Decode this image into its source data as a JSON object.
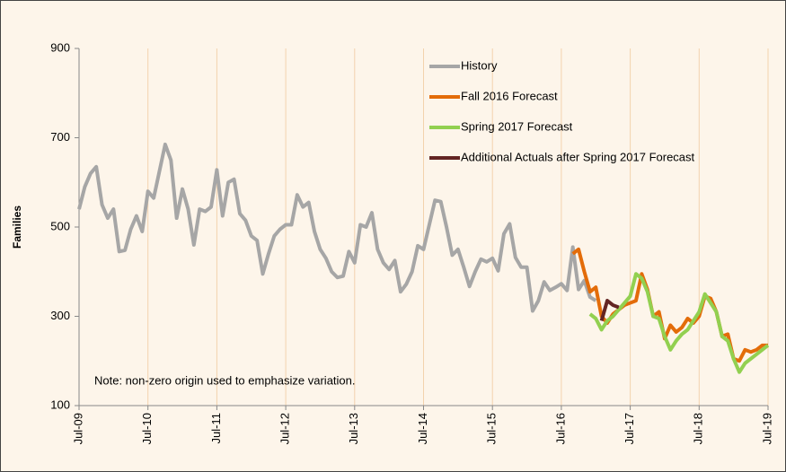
{
  "chart_data": {
    "type": "line",
    "ylabel": "Families",
    "annotation": "Note: non-zero origin used to emphasize variation.",
    "categories": [
      "Jul-09",
      null,
      null,
      null,
      null,
      null,
      null,
      null,
      null,
      null,
      null,
      null,
      "Jul-10",
      null,
      null,
      null,
      null,
      null,
      null,
      null,
      null,
      null,
      null,
      null,
      "Jul-11",
      null,
      null,
      null,
      null,
      null,
      null,
      null,
      null,
      null,
      null,
      null,
      "Jul-12",
      null,
      null,
      null,
      null,
      null,
      null,
      null,
      null,
      null,
      null,
      null,
      "Jul-13",
      null,
      null,
      null,
      null,
      null,
      null,
      null,
      null,
      null,
      null,
      null,
      "Jul-14",
      null,
      null,
      null,
      null,
      null,
      null,
      null,
      null,
      null,
      null,
      null,
      "Jul-15",
      null,
      null,
      null,
      null,
      null,
      null,
      null,
      null,
      null,
      null,
      null,
      "Jul-16",
      null,
      null,
      null,
      null,
      null,
      null,
      null,
      null,
      null,
      null,
      null,
      "Jul-17",
      null,
      null,
      null,
      null,
      null,
      null,
      null,
      null,
      null,
      null,
      null,
      "Jul-18",
      null,
      null,
      null,
      null,
      null,
      null,
      null,
      null,
      null,
      null,
      null,
      "Jul-19"
    ],
    "series": [
      {
        "name": "History",
        "color": "#a6a6a6",
        "values": [
          540,
          590,
          620,
          635,
          550,
          520,
          540,
          445,
          448,
          495,
          525,
          490,
          580,
          565,
          625,
          685,
          650,
          520,
          585,
          540,
          460,
          540,
          535,
          545,
          628,
          525,
          600,
          607,
          530,
          515,
          480,
          470,
          395,
          440,
          480,
          495,
          505,
          505,
          572,
          545,
          555,
          490,
          450,
          430,
          400,
          387,
          390,
          445,
          420,
          505,
          500,
          532,
          450,
          420,
          405,
          425,
          355,
          372,
          400,
          458,
          450,
          505,
          560,
          557,
          500,
          437,
          450,
          410,
          367,
          400,
          428,
          422,
          430,
          402,
          485,
          507,
          432,
          410,
          410,
          312,
          335,
          377,
          358,
          365,
          373,
          358,
          455,
          360,
          380,
          343,
          335,
          null,
          null,
          null,
          null,
          null,
          null,
          null,
          null,
          null,
          null,
          null,
          null,
          null,
          null,
          null,
          null,
          null,
          null,
          null,
          null,
          null,
          null,
          null,
          null,
          null,
          null,
          null,
          null,
          null,
          null
        ]
      },
      {
        "name": "Fall 2016 Forecast",
        "color": "#e36c09",
        "values": [
          null,
          null,
          null,
          null,
          null,
          null,
          null,
          null,
          null,
          null,
          null,
          null,
          null,
          null,
          null,
          null,
          null,
          null,
          null,
          null,
          null,
          null,
          null,
          null,
          null,
          null,
          null,
          null,
          null,
          null,
          null,
          null,
          null,
          null,
          null,
          null,
          null,
          null,
          null,
          null,
          null,
          null,
          null,
          null,
          null,
          null,
          null,
          null,
          null,
          null,
          null,
          null,
          null,
          null,
          null,
          null,
          null,
          null,
          null,
          null,
          null,
          null,
          null,
          null,
          null,
          null,
          null,
          null,
          null,
          null,
          null,
          null,
          null,
          null,
          null,
          null,
          null,
          null,
          null,
          null,
          null,
          null,
          null,
          null,
          null,
          null,
          440,
          450,
          400,
          355,
          365,
          300,
          285,
          305,
          315,
          325,
          330,
          335,
          395,
          360,
          300,
          310,
          250,
          280,
          265,
          275,
          295,
          285,
          300,
          345,
          340,
          310,
          255,
          260,
          205,
          200,
          225,
          220,
          225,
          235,
          235
        ]
      },
      {
        "name": "Spring 2017 Forecast",
        "color": "#92d050",
        "values": [
          null,
          null,
          null,
          null,
          null,
          null,
          null,
          null,
          null,
          null,
          null,
          null,
          null,
          null,
          null,
          null,
          null,
          null,
          null,
          null,
          null,
          null,
          null,
          null,
          null,
          null,
          null,
          null,
          null,
          null,
          null,
          null,
          null,
          null,
          null,
          null,
          null,
          null,
          null,
          null,
          null,
          null,
          null,
          null,
          null,
          null,
          null,
          null,
          null,
          null,
          null,
          null,
          null,
          null,
          null,
          null,
          null,
          null,
          null,
          null,
          null,
          null,
          null,
          null,
          null,
          null,
          null,
          null,
          null,
          null,
          null,
          null,
          null,
          null,
          null,
          null,
          null,
          null,
          null,
          null,
          null,
          null,
          null,
          null,
          null,
          null,
          null,
          null,
          null,
          305,
          295,
          270,
          290,
          300,
          315,
          330,
          345,
          395,
          385,
          355,
          300,
          295,
          255,
          225,
          245,
          260,
          270,
          290,
          310,
          350,
          330,
          310,
          255,
          245,
          205,
          175,
          195,
          205,
          215,
          225,
          235
        ]
      },
      {
        "name": "Additional Actuals after Spring 2017 Forecast",
        "color": "#632523",
        "values": [
          null,
          null,
          null,
          null,
          null,
          null,
          null,
          null,
          null,
          null,
          null,
          null,
          null,
          null,
          null,
          null,
          null,
          null,
          null,
          null,
          null,
          null,
          null,
          null,
          null,
          null,
          null,
          null,
          null,
          null,
          null,
          null,
          null,
          null,
          null,
          null,
          null,
          null,
          null,
          null,
          null,
          null,
          null,
          null,
          null,
          null,
          null,
          null,
          null,
          null,
          null,
          null,
          null,
          null,
          null,
          null,
          null,
          null,
          null,
          null,
          null,
          null,
          null,
          null,
          null,
          null,
          null,
          null,
          null,
          null,
          null,
          null,
          null,
          null,
          null,
          null,
          null,
          null,
          null,
          null,
          null,
          null,
          null,
          null,
          null,
          null,
          null,
          null,
          null,
          null,
          null,
          290,
          335,
          325,
          320,
          null,
          null,
          null,
          null,
          null,
          null,
          null,
          null,
          null,
          null,
          null,
          null,
          null,
          null,
          null,
          null,
          null,
          null,
          null,
          null,
          null,
          null,
          null,
          null,
          null,
          null
        ]
      }
    ],
    "ylim": [
      100,
      900
    ],
    "yticks": [
      100,
      300,
      500,
      700,
      900
    ],
    "grid": false,
    "legend": "upper right"
  }
}
